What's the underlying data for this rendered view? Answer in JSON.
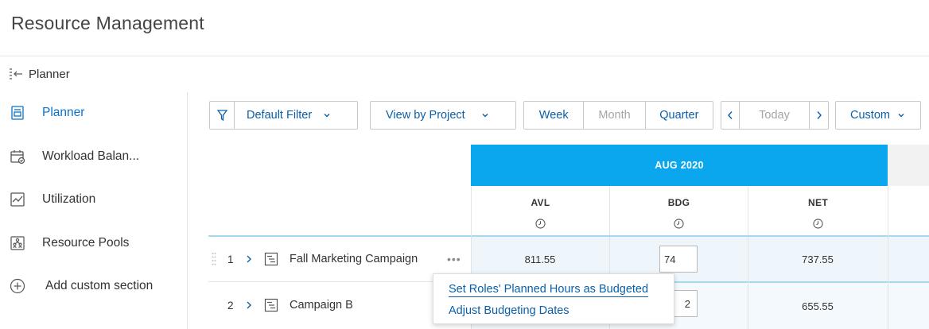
{
  "app": {
    "title": "Resource Management"
  },
  "planner_bar": {
    "label": "Planner",
    "icon": "collapse-panel-icon"
  },
  "sidebar": {
    "items": [
      {
        "label": "Planner",
        "icon": "planner-icon",
        "active": true
      },
      {
        "label": "Workload Balan...",
        "icon": "calendar-check-icon",
        "active": false
      },
      {
        "label": "Utilization",
        "icon": "line-chart-icon",
        "active": false
      },
      {
        "label": "Resource Pools",
        "icon": "people-pool-icon",
        "active": false
      },
      {
        "label": "Add custom section",
        "icon": "plus-circle-icon",
        "active": false
      }
    ]
  },
  "toolbar": {
    "filter_label": "Default Filter",
    "view_label": "View by Project",
    "periods": [
      "Week",
      "Month",
      "Quarter"
    ],
    "nav_today": "Today",
    "custom_label": "Custom"
  },
  "grid": {
    "month": "AUG 2020",
    "columns": [
      "AVL",
      "BDG",
      "NET"
    ],
    "rows": [
      {
        "index": "1",
        "name": "Fall Marketing Campaign",
        "avl": "811.55",
        "bdg": "74",
        "net": "737.55"
      },
      {
        "index": "2",
        "name": "Campaign B",
        "avl": "",
        "bdg": "2",
        "net": "655.55"
      }
    ]
  },
  "menu": {
    "items": [
      "Set Roles' Planned Hours as Budgeted",
      "Adjust Budgeting Dates"
    ]
  },
  "colors": {
    "accent": "#0a5fa8",
    "month_band": "#0aa7ef",
    "active_nav": "#0a72c9"
  }
}
